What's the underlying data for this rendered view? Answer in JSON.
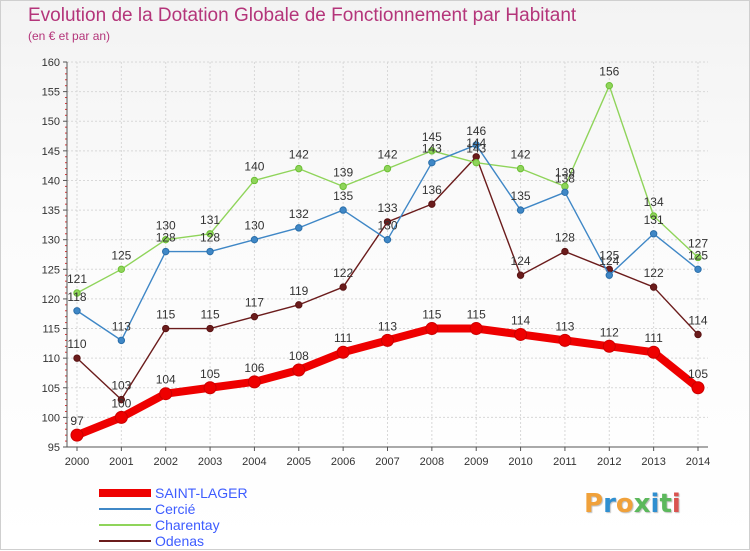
{
  "page": {
    "title": "Evolution de la Dotation Globale de Fonctionnement par Habitant",
    "subtitle": "(en € et par an)",
    "brand": "Proxiti",
    "brand_colors": [
      "#f0a13a",
      "#2f8fd0",
      "#f0a13a",
      "#5cb85c",
      "#2f8fd0",
      "#5cb85c",
      "#d9534f"
    ]
  },
  "chart_data": {
    "type": "line",
    "title": "Evolution de la Dotation Globale de Fonctionnement par Habitant",
    "subtitle": "(en € et par an)",
    "x": [
      "2000",
      "2001",
      "2002",
      "2003",
      "2004",
      "2005",
      "2006",
      "2007",
      "2008",
      "2009",
      "2010",
      "2011",
      "2012",
      "2013",
      "2014"
    ],
    "ylim": [
      95,
      160
    ],
    "yticks": [
      95,
      100,
      105,
      110,
      115,
      120,
      125,
      130,
      135,
      140,
      145,
      150,
      155,
      160
    ],
    "grid": true,
    "legend_position": "bottom-left",
    "series": [
      {
        "name": "SAINT-LAGER",
        "color": "#ee0000",
        "values": [
          97,
          100,
          104,
          105,
          106,
          108,
          111,
          113,
          115,
          115,
          114,
          113,
          112,
          111,
          105
        ]
      },
      {
        "name": "Cercié",
        "color": "#3f87c6",
        "values": [
          118,
          113,
          128,
          128,
          130,
          132,
          135,
          130,
          143,
          146,
          135,
          138,
          124,
          131,
          125
        ]
      },
      {
        "name": "Charentay",
        "color": "#8fd45a",
        "values": [
          121,
          125,
          130,
          131,
          140,
          142,
          139,
          142,
          145,
          143,
          142,
          139,
          156,
          134,
          127
        ]
      },
      {
        "name": "Odenas",
        "color": "#6b1c1c",
        "values": [
          110,
          103,
          115,
          115,
          117,
          119,
          122,
          133,
          136,
          144,
          124,
          128,
          125,
          122,
          114
        ]
      }
    ]
  }
}
